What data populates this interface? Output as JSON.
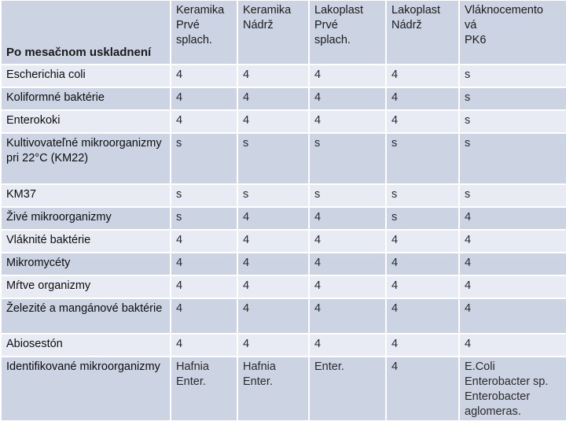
{
  "table": {
    "corner_label": "Po mesačnom uskladnení",
    "columns": [
      {
        "line1": "Keramika",
        "line2": "Prvé",
        "line3": "splach."
      },
      {
        "line1": "Keramika",
        "line2": "Nádrž",
        "line3": ""
      },
      {
        "line1": "Lakoplast",
        "line2": "Prvé",
        "line3": "splach."
      },
      {
        "line1": "Lakoplast",
        "line2": "Nádrž",
        "line3": ""
      },
      {
        "line1": "Vláknocemento",
        "line2": "vá",
        "line3": "PK6"
      }
    ],
    "rows": [
      {
        "label": "Escherichia coli",
        "values": [
          "4",
          "4",
          "4",
          "4",
          "s"
        ]
      },
      {
        "label": "Koliformné baktérie",
        "values": [
          "4",
          "4",
          "4",
          "4",
          "s"
        ]
      },
      {
        "label": "Enterokoki",
        "values": [
          "4",
          "4",
          "4",
          "4",
          "s"
        ]
      },
      {
        "label": "Kultivovateľné mikroorganizmy pri 22°C (KM22)",
        "values": [
          "s",
          "s",
          "s",
          "s",
          "s"
        ]
      },
      {
        "label": "KM37",
        "values": [
          "s",
          "s",
          "s",
          "s",
          "s"
        ]
      },
      {
        "label": "Živé mikroorganizmy",
        "values": [
          "s",
          "4",
          "4",
          "s",
          "4"
        ]
      },
      {
        "label": "Vláknité baktérie",
        "values": [
          "4",
          "4",
          "4",
          "4",
          "4"
        ]
      },
      {
        "label": "Mikromycéty",
        "values": [
          "4",
          "4",
          "4",
          "4",
          "4"
        ]
      },
      {
        "label": "Mŕtve organizmy",
        "values": [
          "4",
          "4",
          "4",
          "4",
          "4"
        ]
      },
      {
        "label": "Železité a mangánové baktérie",
        "values": [
          "4",
          "4",
          "4",
          "4",
          "4"
        ]
      },
      {
        "label": "Abiosestón",
        "values": [
          "4",
          "4",
          "4",
          "4",
          "4"
        ]
      },
      {
        "label": "Identifikované mikroorganizmy",
        "values": [
          "Hafnia Enter.",
          "Hafnia Enter.",
          "Enter.",
          "4",
          "E.Coli Enterobacter sp. Enterobacter aglomeras."
        ]
      }
    ]
  }
}
